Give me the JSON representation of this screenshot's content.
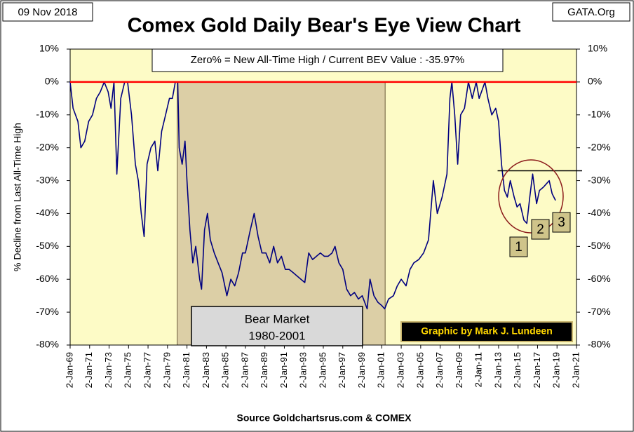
{
  "chart_data": {
    "type": "line",
    "date_label": "09 Nov 2018",
    "source_label": "GATA.Org",
    "title": "Comex Gold Daily Bear's Eye View Chart",
    "annotation": "Zero% = New All-Time High  / Current BEV Value :  -35.97%",
    "y_label": "% Decline from Last All-Time High",
    "shade_label": [
      "Bear Market",
      "1980-2001"
    ],
    "shade_x": [
      1980.0,
      2001.35
    ],
    "credit": "Graphic by Mark J. Lundeen",
    "footer": "Source Goldchartsrus.com & COMEX",
    "markers": [
      "1",
      "2",
      "3"
    ],
    "reference_line": {
      "value": -27,
      "from": 2012.9
    },
    "zero_line_color": "#ff0000",
    "xlim": [
      1969,
      2021
    ],
    "xticks": [
      {
        "value": 1969,
        "label": "2-Jan-69"
      },
      {
        "value": 1971,
        "label": "2-Jan-71"
      },
      {
        "value": 1973,
        "label": "2-Jan-73"
      },
      {
        "value": 1975,
        "label": "2-Jan-75"
      },
      {
        "value": 1977,
        "label": "2-Jan-77"
      },
      {
        "value": 1979,
        "label": "2-Jan-79"
      },
      {
        "value": 1981,
        "label": "2-Jan-81"
      },
      {
        "value": 1983,
        "label": "2-Jan-83"
      },
      {
        "value": 1985,
        "label": "2-Jan-85"
      },
      {
        "value": 1987,
        "label": "2-Jan-87"
      },
      {
        "value": 1989,
        "label": "2-Jan-89"
      },
      {
        "value": 1991,
        "label": "2-Jan-91"
      },
      {
        "value": 1993,
        "label": "2-Jan-93"
      },
      {
        "value": 1995,
        "label": "2-Jan-95"
      },
      {
        "value": 1997,
        "label": "2-Jan-97"
      },
      {
        "value": 1999,
        "label": "2-Jan-99"
      },
      {
        "value": 2001,
        "label": "2-Jan-01"
      },
      {
        "value": 2003,
        "label": "2-Jan-03"
      },
      {
        "value": 2005,
        "label": "2-Jan-05"
      },
      {
        "value": 2007,
        "label": "2-Jan-07"
      },
      {
        "value": 2009,
        "label": "2-Jan-09"
      },
      {
        "value": 2011,
        "label": "2-Jan-11"
      },
      {
        "value": 2013,
        "label": "2-Jan-13"
      },
      {
        "value": 2015,
        "label": "2-Jan-15"
      },
      {
        "value": 2017,
        "label": "2-Jan-17"
      },
      {
        "value": 2019,
        "label": "2-Jan-19"
      },
      {
        "value": 2021,
        "label": "2-Jan-21"
      }
    ],
    "ylim": [
      -80,
      10
    ],
    "yticks": [
      {
        "value": 10,
        "label": "10%"
      },
      {
        "value": 0,
        "label": "0%"
      },
      {
        "value": -10,
        "label": "-10%"
      },
      {
        "value": -20,
        "label": "-20%"
      },
      {
        "value": -30,
        "label": "-30%"
      },
      {
        "value": -40,
        "label": "-40%"
      },
      {
        "value": -50,
        "label": "-50%"
      },
      {
        "value": -60,
        "label": "-60%"
      },
      {
        "value": -70,
        "label": "-70%"
      },
      {
        "value": -80,
        "label": "-80%"
      }
    ],
    "series": [
      {
        "color": "#000080",
        "x": [
          1969.0,
          1969.3,
          1969.8,
          1970.1,
          1970.5,
          1970.9,
          1971.3,
          1971.7,
          1972.1,
          1972.5,
          1972.9,
          1973.2,
          1973.5,
          1973.8,
          1974.2,
          1974.6,
          1974.9,
          1975.3,
          1975.7,
          1976.0,
          1976.3,
          1976.6,
          1976.9,
          1977.3,
          1977.7,
          1978.0,
          1978.4,
          1978.8,
          1979.2,
          1979.5,
          1979.8,
          1980.05,
          1980.2,
          1980.5,
          1980.8,
          1981.0,
          1981.3,
          1981.6,
          1981.9,
          1982.3,
          1982.5,
          1982.8,
          1983.1,
          1983.4,
          1983.8,
          1984.2,
          1984.6,
          1985.1,
          1985.5,
          1985.9,
          1986.3,
          1986.7,
          1987.0,
          1987.5,
          1987.9,
          1988.3,
          1988.7,
          1989.1,
          1989.5,
          1989.9,
          1990.3,
          1990.7,
          1991.1,
          1991.5,
          1991.9,
          1992.3,
          1992.7,
          1993.1,
          1993.5,
          1993.9,
          1994.3,
          1994.7,
          1995.1,
          1995.5,
          1995.9,
          1996.2,
          1996.6,
          1997.0,
          1997.4,
          1997.8,
          1998.2,
          1998.6,
          1999.0,
          1999.5,
          1999.8,
          2000.2,
          2000.6,
          2001.0,
          2001.3,
          2001.7,
          2002.2,
          2002.6,
          2003.0,
          2003.5,
          2003.9,
          2004.3,
          2004.8,
          2005.3,
          2005.8,
          2006.3,
          2006.7,
          2007.2,
          2007.7,
          2008.0,
          2008.2,
          2008.5,
          2008.8,
          2009.1,
          2009.5,
          2009.9,
          2010.3,
          2010.7,
          2011.0,
          2011.6,
          2011.9,
          2012.3,
          2012.7,
          2013.0,
          2013.3,
          2013.6,
          2013.9,
          2014.2,
          2014.6,
          2014.9,
          2015.2,
          2015.6,
          2015.9,
          2016.2,
          2016.5,
          2016.9,
          2017.2,
          2017.6,
          2017.9,
          2018.2,
          2018.5,
          2018.85
        ],
        "values": [
          0,
          -8,
          -12,
          -20,
          -18,
          -12,
          -10,
          -5,
          -3,
          0,
          -3,
          -8,
          0,
          -28,
          -5,
          0,
          0,
          -10,
          -25,
          -30,
          -40,
          -47,
          -25,
          -20,
          -18,
          -27,
          -15,
          -10,
          -5,
          -5,
          0,
          0,
          -20,
          -25,
          -18,
          -30,
          -45,
          -55,
          -50,
          -60,
          -63,
          -45,
          -40,
          -48,
          -52,
          -55,
          -58,
          -65,
          -60,
          -62,
          -58,
          -52,
          -52,
          -45,
          -40,
          -47,
          -52,
          -52,
          -55,
          -50,
          -55,
          -53,
          -57,
          -57,
          -58,
          -59,
          -60,
          -61,
          -52,
          -54,
          -53,
          -52,
          -53,
          -53,
          -52,
          -50,
          -55,
          -57,
          -63,
          -65,
          -64,
          -66,
          -65,
          -69,
          -60,
          -65,
          -67,
          -68,
          -69,
          -66,
          -65,
          -62,
          -60,
          -62,
          -57,
          -55,
          -54,
          -52,
          -48,
          -30,
          -40,
          -35,
          -28,
          -5,
          0,
          -10,
          -25,
          -10,
          -8,
          0,
          -5,
          0,
          -5,
          0,
          -5,
          -10,
          -8,
          -12,
          -25,
          -33,
          -35,
          -30,
          -35,
          -38,
          -37,
          -42,
          -43,
          -35,
          -28,
          -37,
          -33,
          -32,
          -31,
          -30,
          -34,
          -36
        ]
      }
    ]
  }
}
